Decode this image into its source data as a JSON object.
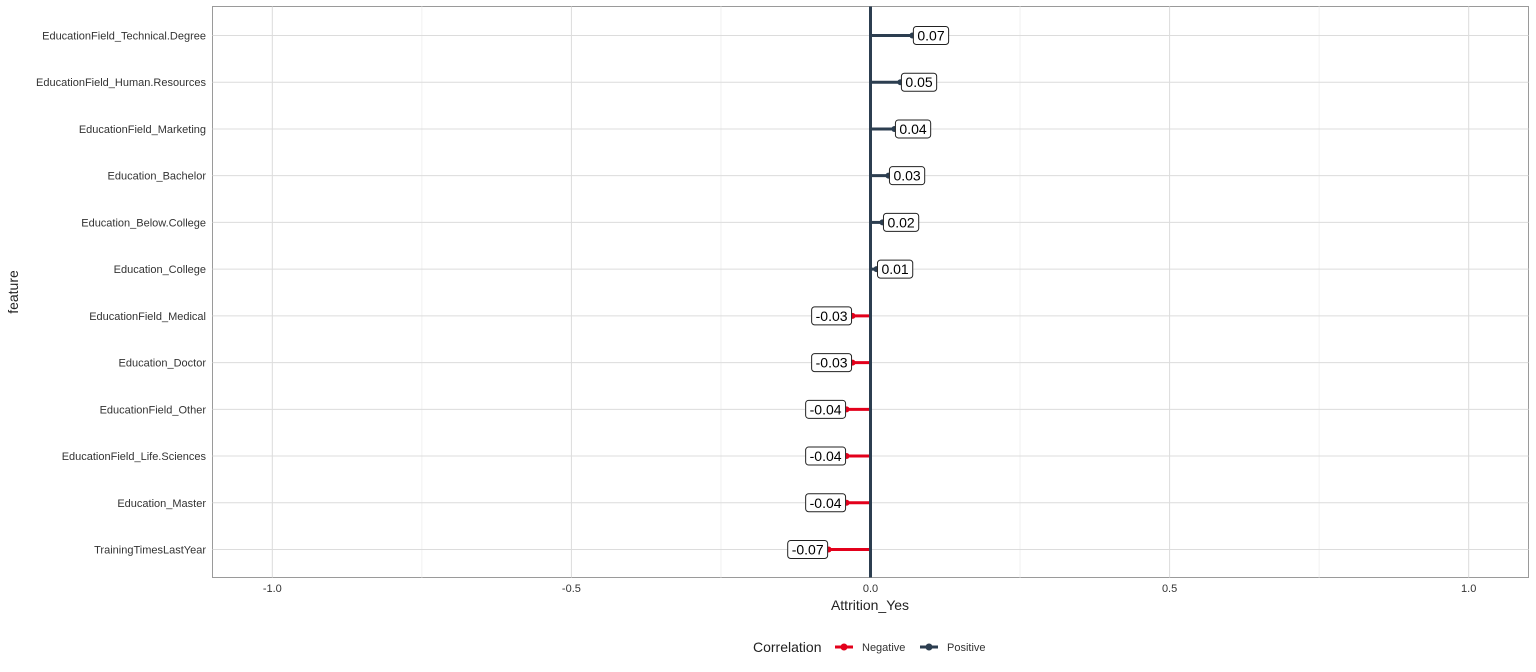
{
  "chart_data": {
    "type": "lollipop",
    "xlabel": "Attrition_Yes",
    "ylabel": "feature",
    "xlim": [
      -1.1,
      1.1
    ],
    "xticks": [
      -1.0,
      -0.5,
      0.0,
      0.5,
      1.0
    ],
    "xtick_labels": [
      "-1.0",
      "-0.5",
      "0.0",
      "0.5",
      "1.0"
    ],
    "grid": true,
    "legend_position": "bottom",
    "legend_title": "Correlation",
    "legend": [
      {
        "name": "Negative",
        "color": "#e3001b"
      },
      {
        "name": "Positive",
        "color": "#2c3e50"
      }
    ],
    "features": [
      "EducationField_Technical.Degree",
      "EducationField_Human.Resources",
      "EducationField_Marketing",
      "Education_Bachelor",
      "Education_Below.College",
      "Education_College",
      "EducationField_Medical",
      "Education_Doctor",
      "EducationField_Other",
      "EducationField_Life.Sciences",
      "Education_Master",
      "TrainingTimesLastYear"
    ],
    "values": [
      0.07,
      0.05,
      0.04,
      0.03,
      0.02,
      0.01,
      -0.03,
      -0.03,
      -0.04,
      -0.04,
      -0.04,
      -0.07
    ],
    "labels": [
      "0.07",
      "0.05",
      "0.04",
      "0.03",
      "0.02",
      "0.01",
      "-0.03",
      "-0.03",
      "-0.04",
      "-0.04",
      "-0.04",
      "-0.07"
    ],
    "series_by_feature": [
      "Positive",
      "Positive",
      "Positive",
      "Positive",
      "Positive",
      "Positive",
      "Negative",
      "Negative",
      "Negative",
      "Negative",
      "Negative",
      "Negative"
    ],
    "zero_line_color": "#2c3e50"
  }
}
